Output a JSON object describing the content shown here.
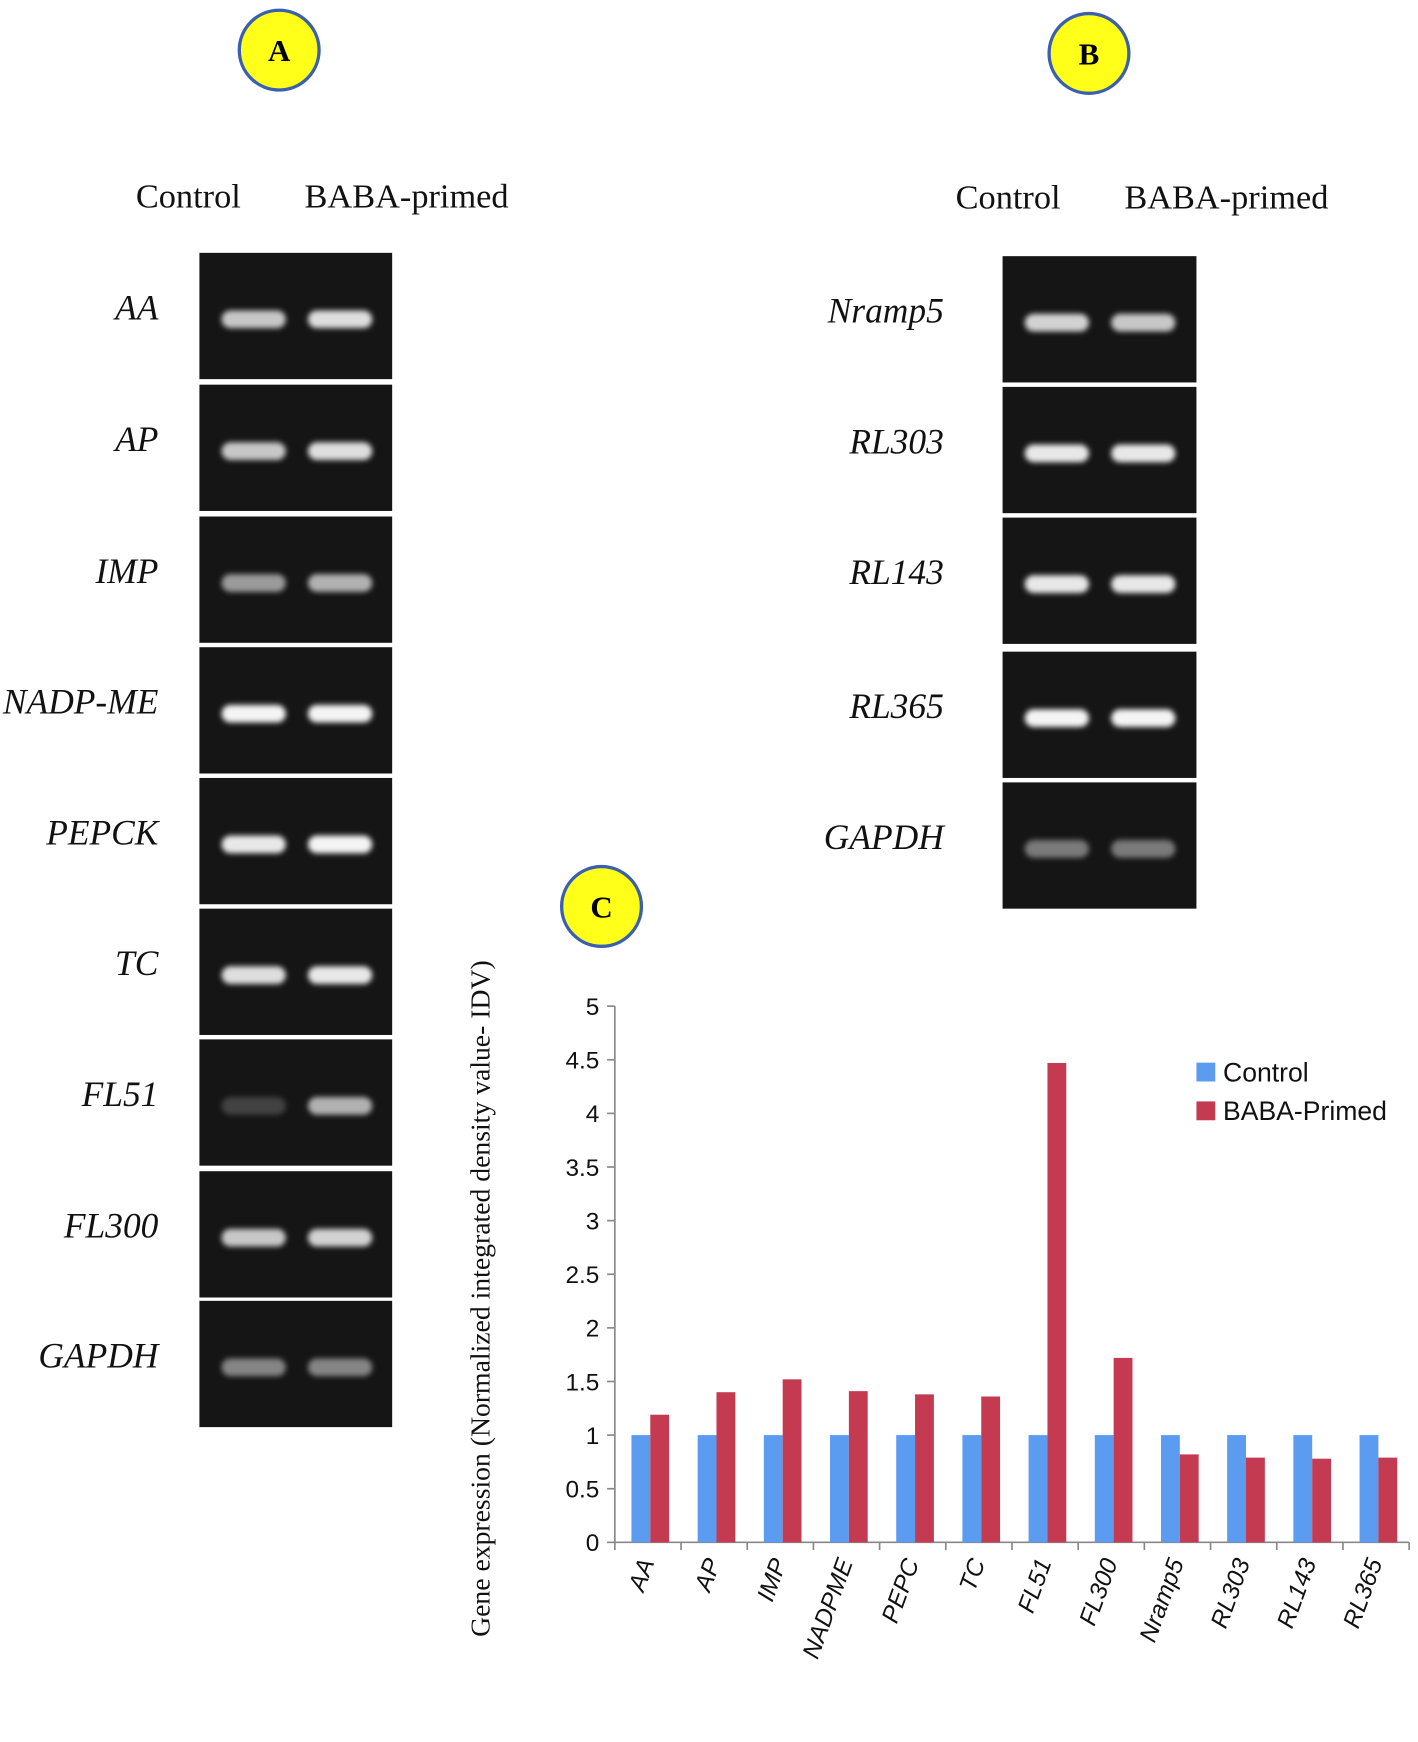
{
  "panels": [
    {
      "label": "A",
      "columns": [
        "Control",
        "BABA-primed"
      ],
      "genes": [
        "AA",
        "AP",
        "IMP",
        "NADP-ME",
        "PEPCK",
        "TC",
        "FL51",
        "FL300",
        "GAPDH"
      ]
    },
    {
      "label": "B",
      "columns": [
        "Control",
        "BABA-primed"
      ],
      "genes": [
        "Nramp5",
        "RL303",
        "RL143",
        "RL365",
        "GAPDH"
      ]
    }
  ],
  "chart_panel": "C",
  "chart_data": {
    "type": "bar",
    "y_label": "Gene expression (Normalized integrated density value- IDV)",
    "categories": [
      "AA",
      "AP",
      "IMP",
      "NADPME",
      "PEPC",
      "TC",
      "FL51",
      "FL300",
      "Nramp5",
      "RL303",
      "RL143",
      "RL365"
    ],
    "series": [
      {
        "name": "Control",
        "color": "#5b9bf0",
        "values": [
          1,
          1,
          1,
          1,
          1,
          1,
          1,
          1,
          1,
          1,
          1,
          1
        ]
      },
      {
        "name": "BABA-Primed",
        "color": "#c43a50",
        "values": [
          1.19,
          1.4,
          1.52,
          1.41,
          1.38,
          1.36,
          4.47,
          1.72,
          0.82,
          0.79,
          0.78,
          0.79
        ]
      }
    ],
    "ylim": [
      0,
      5
    ],
    "yticks": [
      0,
      0.5,
      1,
      1.5,
      2,
      2.5,
      3,
      3.5,
      4,
      4.5,
      5
    ],
    "grid": false,
    "legend": "right"
  }
}
